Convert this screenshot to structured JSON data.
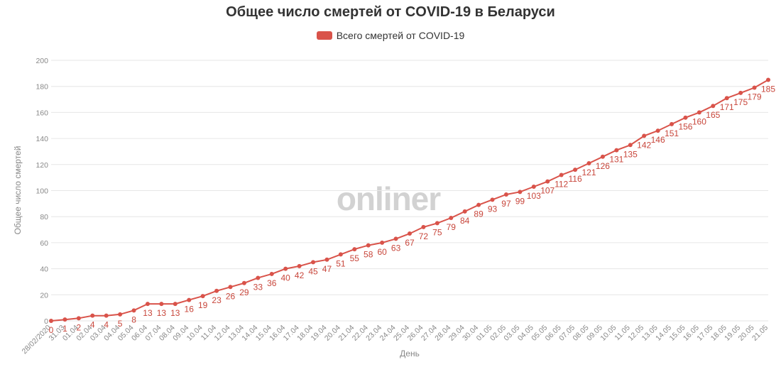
{
  "title": "Общее число смертей от COVID-19 в Беларуси",
  "legend_label": "Всего смертей от COVID-19",
  "watermark": "onliner",
  "colors": {
    "series": "#d9534a",
    "grid": "#e6e6e6",
    "text": "#333333",
    "muted": "#888888"
  },
  "chart_data": {
    "type": "line",
    "title": "Общее число смертей от COVID-19 в Беларуси",
    "xlabel": "День",
    "ylabel": "Общее число смертей",
    "ylim": [
      0,
      200
    ],
    "yticks": [
      0,
      20,
      40,
      60,
      80,
      100,
      120,
      140,
      160,
      180,
      200
    ],
    "grid": true,
    "legend_position": "top-center",
    "categories": [
      "28/02/2020",
      "31.03",
      "01.04",
      "02.04",
      "03.04",
      "04.04",
      "05.04",
      "06.04",
      "07.04",
      "08.04",
      "09.04",
      "10.04",
      "11.04",
      "12.04",
      "13.04",
      "14.04",
      "15.04",
      "16.04",
      "17.04",
      "18.04",
      "19.04",
      "20.04",
      "21.04",
      "22.04",
      "23.04",
      "24.04",
      "25.04",
      "26.04",
      "27.04",
      "28.04",
      "29.04",
      "30.04",
      "01.05",
      "02.05",
      "03.05",
      "04.05",
      "05.05",
      "06.05",
      "07.05",
      "08.05",
      "09.05",
      "10.05",
      "11.05",
      "12.05",
      "13.05",
      "14.05",
      "15.05",
      "16.05",
      "17.05",
      "18.05",
      "19.05",
      "20.05",
      "21.05"
    ],
    "series": [
      {
        "name": "Всего смертей от COVID-19",
        "values": [
          0,
          1,
          2,
          4,
          4,
          5,
          8,
          13,
          13,
          13,
          16,
          19,
          23,
          26,
          29,
          33,
          36,
          40,
          42,
          45,
          47,
          51,
          55,
          58,
          60,
          63,
          67,
          72,
          75,
          79,
          84,
          89,
          93,
          97,
          99,
          103,
          107,
          112,
          116,
          121,
          126,
          131,
          135,
          142,
          146,
          151,
          156,
          160,
          165,
          171,
          175,
          179,
          185
        ]
      }
    ]
  }
}
